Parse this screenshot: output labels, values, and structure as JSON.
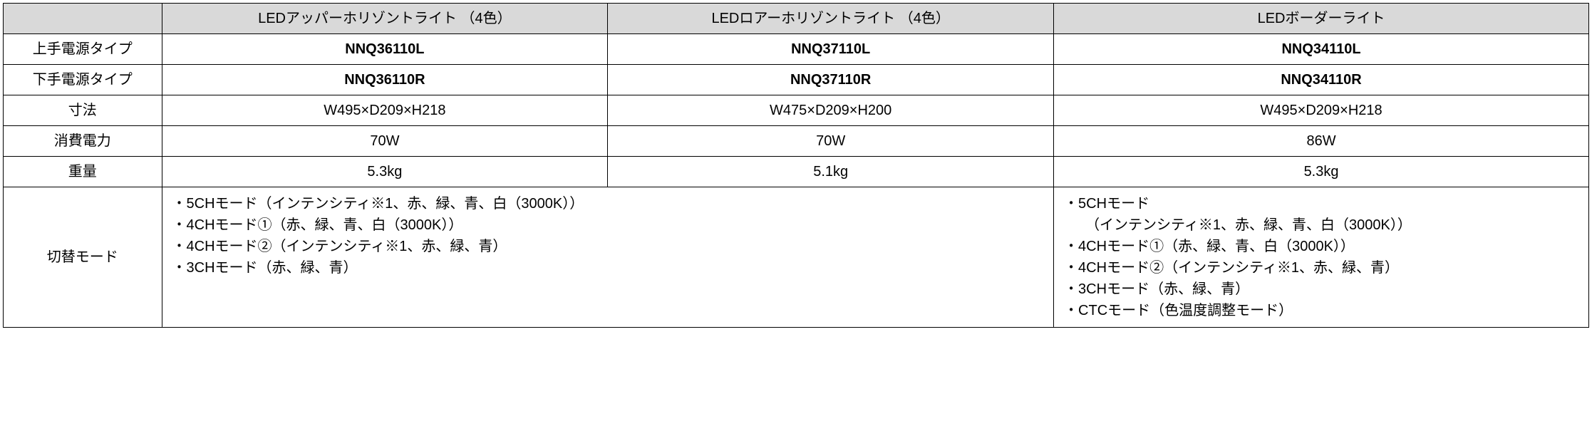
{
  "table": {
    "colors": {
      "header_bg": "#d9d9d9",
      "border": "#000000",
      "background": "#ffffff",
      "text": "#000000"
    },
    "headers": {
      "col1": "LEDアッパーホリゾントライト （4色）",
      "col2": "LEDロアーホリゾントライト （4色）",
      "col3": "LEDボーダーライト"
    },
    "rows": {
      "upper_power": {
        "label": "上手電源タイプ",
        "c1": "NNQ36110L",
        "c2": "NNQ37110L",
        "c3": "NNQ34110L"
      },
      "lower_power": {
        "label": "下手電源タイプ",
        "c1": "NNQ36110R",
        "c2": "NNQ37110R",
        "c3": "NNQ34110R"
      },
      "dimensions": {
        "label": "寸法",
        "c1": "W495×D209×H218",
        "c2": "W475×D209×H200",
        "c3": "W495×D209×H218"
      },
      "power_consumption": {
        "label": "消費電力",
        "c1": "70W",
        "c2": "70W",
        "c3": "86W"
      },
      "weight": {
        "label": "重量",
        "c1": "5.3kg",
        "c2": "5.1kg",
        "c3": "5.3kg"
      },
      "mode": {
        "label": "切替モード",
        "left_block": {
          "l1": "・5CHモード（インテンシティ※1、赤、緑、青、白（3000K））",
          "l2": "・4CHモード①（赤、緑、青、白（3000K））",
          "l3": "・4CHモード②（インテンシティ※1、赤、緑、青）",
          "l4": "・3CHモード（赤、緑、青）"
        },
        "right_block": {
          "l1": "・5CHモード",
          "l1b": "（インテンシティ※1、赤、緑、青、白（3000K））",
          "l2": "・4CHモード①（赤、緑、青、白（3000K））",
          "l3": "・4CHモード②（インテンシティ※1、赤、緑、青）",
          "l4": "・3CHモード（赤、緑、青）",
          "l5": "・CTCモード（色温度調整モード）"
        }
      }
    }
  }
}
